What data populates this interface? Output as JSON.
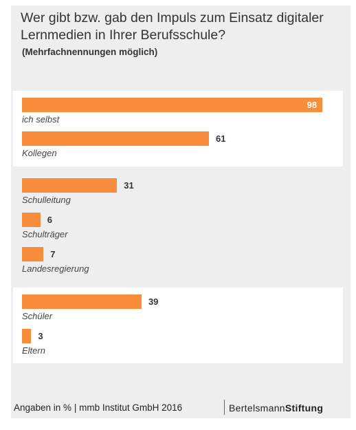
{
  "chart_data": {
    "type": "bar",
    "title": "Wer gibt bzw. gab den Impuls zum Einsatz digitaler Lernmedien in Ihrer Berufsschule?",
    "subtitle": "(Mehrfachnennungen möglich)",
    "unit": "%",
    "categories": [
      "ich selbst",
      "Kollegen",
      "Schulleitung",
      "Schulträger",
      "Landesregierung",
      "Schüler",
      "Eltern"
    ],
    "values": [
      98,
      61,
      31,
      6,
      7,
      39,
      3
    ],
    "groups": [
      {
        "categories": [
          "ich selbst",
          "Kollegen"
        ],
        "highlighted": true
      },
      {
        "categories": [
          "Schulleitung",
          "Schulträger",
          "Landesregierung"
        ],
        "highlighted": false
      },
      {
        "categories": [
          "Schüler",
          "Eltern"
        ],
        "highlighted": true
      }
    ],
    "xlim": [
      0,
      100
    ],
    "bar_color": "#f78c3a"
  },
  "footer": {
    "source": "Angaben in % | mmb Institut GmbH 2016",
    "logo_left": "Bertelsmann",
    "logo_right": "Stiftung"
  }
}
